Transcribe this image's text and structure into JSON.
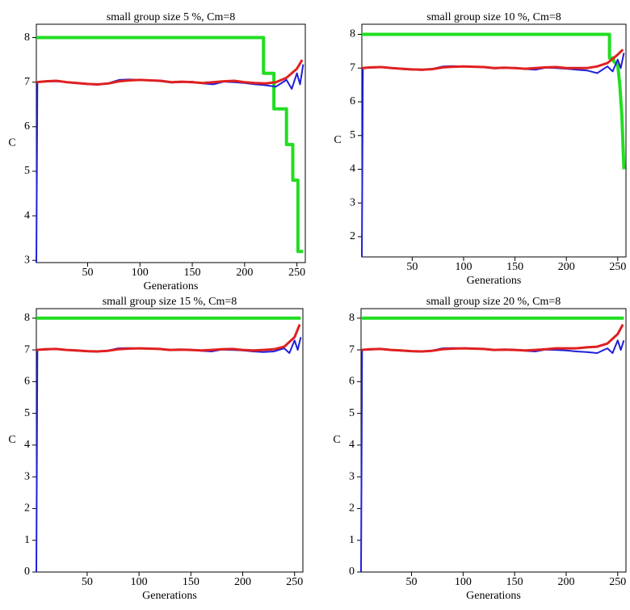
{
  "chart_data": [
    {
      "type": "line",
      "title": "small group size 5 %, Cm=8",
      "xlabel": "Generations",
      "ylabel": "C",
      "xlim": [
        1,
        258
      ],
      "ylim": [
        2.95,
        8.3
      ],
      "xticks": [
        50,
        100,
        150,
        200,
        250
      ],
      "yticks": [
        3,
        4,
        5,
        6,
        7,
        8
      ],
      "series": [
        {
          "color": "#22dd22",
          "x": [
            1,
            218,
            218,
            228,
            228,
            240,
            240,
            246,
            246,
            251,
            251,
            256
          ],
          "values": [
            8,
            8,
            7.2,
            7.2,
            6.4,
            6.4,
            5.6,
            5.6,
            4.8,
            4.8,
            3.2,
            3.2
          ]
        },
        {
          "color": "#1f1fd8",
          "x": [
            1,
            2,
            10,
            20,
            30,
            40,
            50,
            60,
            70,
            80,
            90,
            100,
            110,
            120,
            130,
            140,
            150,
            160,
            170,
            180,
            190,
            200,
            210,
            220,
            230,
            240,
            245,
            250,
            253,
            256
          ],
          "values": [
            2.95,
            7.0,
            7.01,
            7.02,
            7.0,
            6.97,
            6.95,
            6.94,
            6.98,
            7.05,
            7.06,
            7.05,
            7.04,
            7.02,
            6.99,
            7.0,
            7.01,
            6.97,
            6.95,
            7.01,
            7.0,
            6.98,
            6.95,
            6.93,
            6.9,
            7.05,
            6.85,
            7.2,
            6.95,
            7.4
          ]
        },
        {
          "color": "#e02020",
          "x": [
            1,
            10,
            20,
            30,
            40,
            50,
            60,
            70,
            80,
            90,
            100,
            110,
            120,
            130,
            140,
            150,
            160,
            170,
            180,
            190,
            200,
            210,
            220,
            230,
            240,
            250,
            255
          ],
          "values": [
            7.0,
            7.02,
            7.03,
            7.0,
            6.98,
            6.96,
            6.95,
            6.97,
            7.02,
            7.04,
            7.05,
            7.04,
            7.03,
            7.0,
            7.01,
            7.0,
            6.98,
            7.0,
            7.02,
            7.03,
            7.0,
            6.98,
            6.97,
            7.0,
            7.1,
            7.3,
            7.5
          ]
        }
      ]
    },
    {
      "type": "line",
      "title": "small group size 10 %, Cm=8",
      "xlabel": "Generations",
      "ylabel": "C",
      "xlim": [
        1,
        258
      ],
      "ylim": [
        1.4,
        8.3
      ],
      "xticks": [
        50,
        100,
        150,
        200,
        250
      ],
      "yticks": [
        2,
        3,
        4,
        5,
        6,
        7,
        8
      ],
      "series": [
        {
          "color": "#22dd22",
          "x": [
            1,
            242,
            242,
            246,
            246,
            250,
            252,
            254,
            256
          ],
          "values": [
            8,
            8,
            7.3,
            7.3,
            7.2,
            7.1,
            6.5,
            5.6,
            4.0
          ]
        },
        {
          "color": "#1f1fd8",
          "x": [
            1,
            2,
            10,
            20,
            30,
            40,
            50,
            60,
            70,
            80,
            90,
            100,
            110,
            120,
            130,
            140,
            150,
            160,
            170,
            180,
            190,
            200,
            210,
            220,
            230,
            240,
            245,
            250,
            253,
            256
          ],
          "values": [
            1.4,
            7.0,
            7.01,
            7.02,
            7.0,
            6.97,
            6.95,
            6.94,
            6.98,
            7.05,
            7.06,
            7.05,
            7.04,
            7.02,
            6.99,
            7.0,
            7.01,
            6.97,
            6.95,
            7.01,
            7.0,
            6.98,
            6.95,
            6.93,
            6.85,
            7.05,
            6.9,
            7.25,
            7.0,
            7.45
          ]
        },
        {
          "color": "#e02020",
          "x": [
            1,
            10,
            20,
            30,
            40,
            50,
            60,
            70,
            80,
            90,
            100,
            110,
            120,
            130,
            140,
            150,
            160,
            170,
            180,
            190,
            200,
            210,
            220,
            230,
            240,
            250,
            255
          ],
          "values": [
            7.0,
            7.02,
            7.03,
            7.0,
            6.98,
            6.96,
            6.95,
            6.97,
            7.02,
            7.04,
            7.05,
            7.04,
            7.03,
            7.0,
            7.01,
            7.0,
            6.98,
            7.0,
            7.02,
            7.03,
            7.0,
            7.0,
            7.0,
            7.05,
            7.15,
            7.4,
            7.55
          ]
        }
      ]
    },
    {
      "type": "line",
      "title": "small group size 15 %, Cm=8",
      "xlabel": "Generations",
      "ylabel": "C",
      "xlim": [
        1,
        258
      ],
      "ylim": [
        0,
        8.3
      ],
      "xticks": [
        50,
        100,
        150,
        200,
        250
      ],
      "yticks": [
        0,
        1,
        2,
        3,
        4,
        5,
        6,
        7,
        8
      ],
      "series": [
        {
          "color": "#22dd22",
          "x": [
            1,
            256
          ],
          "values": [
            8,
            8
          ]
        },
        {
          "color": "#1f1fd8",
          "x": [
            1,
            2,
            10,
            20,
            30,
            40,
            50,
            60,
            70,
            80,
            90,
            100,
            110,
            120,
            130,
            140,
            150,
            160,
            170,
            180,
            190,
            200,
            210,
            220,
            230,
            240,
            245,
            250,
            253,
            256
          ],
          "values": [
            0,
            7.0,
            7.01,
            7.02,
            7.0,
            6.97,
            6.95,
            6.94,
            6.98,
            7.05,
            7.06,
            7.05,
            7.04,
            7.02,
            6.99,
            7.0,
            7.01,
            6.97,
            6.95,
            7.01,
            7.0,
            6.98,
            6.95,
            6.93,
            6.95,
            7.05,
            6.9,
            7.3,
            7.0,
            7.4
          ]
        },
        {
          "color": "#e02020",
          "x": [
            1,
            10,
            20,
            30,
            40,
            50,
            60,
            70,
            80,
            90,
            100,
            110,
            120,
            130,
            140,
            150,
            160,
            170,
            180,
            190,
            200,
            210,
            220,
            230,
            240,
            250,
            255
          ],
          "values": [
            7.0,
            7.02,
            7.03,
            7.0,
            6.98,
            6.96,
            6.95,
            6.97,
            7.02,
            7.04,
            7.05,
            7.04,
            7.03,
            7.0,
            7.01,
            7.0,
            6.98,
            7.0,
            7.02,
            7.03,
            7.0,
            6.98,
            7.0,
            7.02,
            7.1,
            7.4,
            7.8
          ]
        }
      ]
    },
    {
      "type": "line",
      "title": "small group size 20 %, Cm=8",
      "xlabel": "Generations",
      "ylabel": "C",
      "xlim": [
        1,
        258
      ],
      "ylim": [
        0,
        8.3
      ],
      "xticks": [
        50,
        100,
        150,
        200,
        250
      ],
      "yticks": [
        0,
        1,
        2,
        3,
        4,
        5,
        6,
        7,
        8
      ],
      "series": [
        {
          "color": "#22dd22",
          "x": [
            1,
            256
          ],
          "values": [
            8,
            8
          ]
        },
        {
          "color": "#1f1fd8",
          "x": [
            1,
            2,
            10,
            20,
            30,
            40,
            50,
            60,
            70,
            80,
            90,
            100,
            110,
            120,
            130,
            140,
            150,
            160,
            170,
            180,
            190,
            200,
            210,
            220,
            230,
            240,
            245,
            250,
            253,
            256
          ],
          "values": [
            0,
            7.0,
            7.01,
            7.02,
            7.0,
            6.97,
            6.95,
            6.94,
            6.98,
            7.05,
            7.06,
            7.05,
            7.04,
            7.02,
            6.99,
            7.0,
            7.01,
            6.97,
            6.95,
            7.01,
            7.0,
            6.98,
            6.95,
            6.93,
            6.9,
            7.05,
            6.9,
            7.3,
            7.0,
            7.3
          ]
        },
        {
          "color": "#e02020",
          "x": [
            1,
            10,
            20,
            30,
            40,
            50,
            60,
            70,
            80,
            90,
            100,
            110,
            120,
            130,
            140,
            150,
            160,
            170,
            180,
            190,
            200,
            210,
            220,
            230,
            240,
            250,
            255
          ],
          "values": [
            7.0,
            7.02,
            7.03,
            7.0,
            6.98,
            6.96,
            6.95,
            6.97,
            7.02,
            7.04,
            7.05,
            7.04,
            7.03,
            7.0,
            7.01,
            7.0,
            6.98,
            7.0,
            7.02,
            7.05,
            7.05,
            7.05,
            7.08,
            7.1,
            7.2,
            7.5,
            7.8
          ]
        }
      ]
    }
  ]
}
